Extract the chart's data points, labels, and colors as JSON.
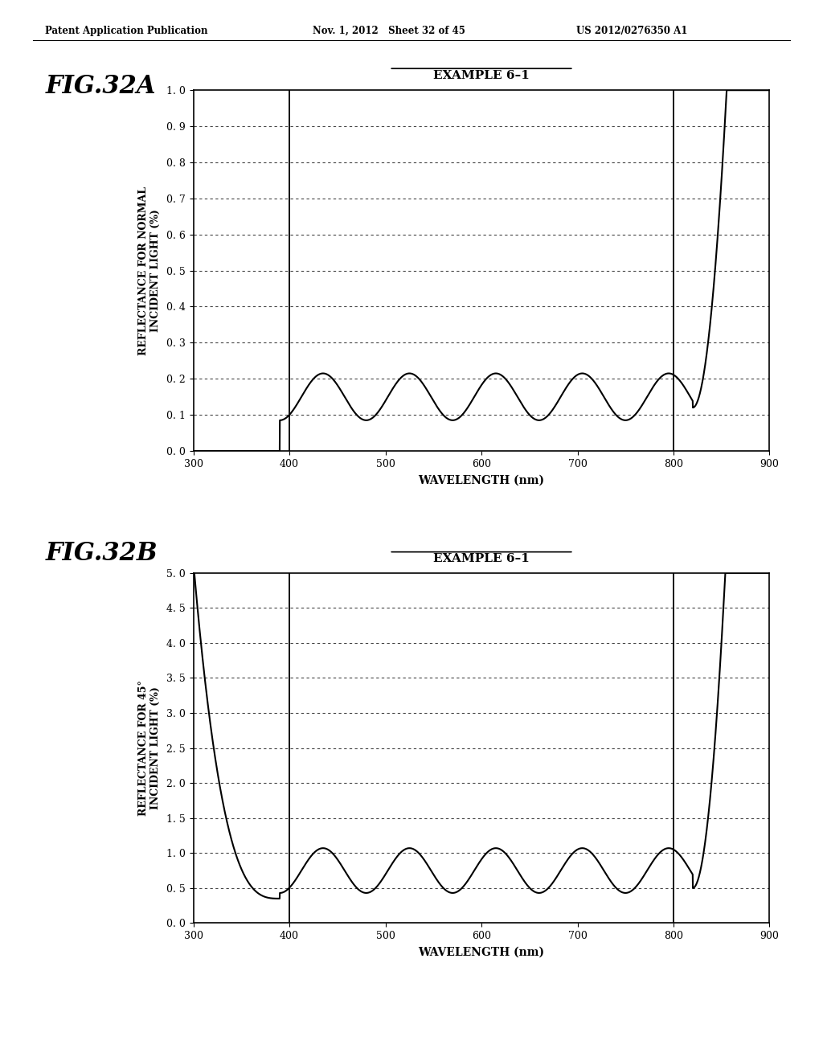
{
  "header_left": "Patent Application Publication",
  "header_mid": "Nov. 1, 2012   Sheet 32 of 45",
  "header_right": "US 2012/0276350 A1",
  "fig_label_A": "FIG.32A",
  "fig_label_B": "FIG.32B",
  "chart_title": "EXAMPLE 6–1",
  "xlabel": "WAVELENGTH (nm)",
  "ylabel_A": "REFLECTANCE FOR NORMAL\nINCIDENT LIGHT (%)",
  "ylabel_B": "REFLECTANCE FOR 45°\nINCIDENT LIGHT (%)",
  "xlim": [
    300,
    900
  ],
  "xticks": [
    300,
    400,
    500,
    600,
    700,
    800,
    900
  ],
  "ylim_A": [
    0.0,
    1.0
  ],
  "yticks_A": [
    0.0,
    0.1,
    0.2,
    0.3,
    0.4,
    0.5,
    0.6,
    0.7,
    0.8,
    0.9,
    1.0
  ],
  "ylim_B": [
    0.0,
    5.0
  ],
  "yticks_B": [
    0.0,
    0.5,
    1.0,
    1.5,
    2.0,
    2.5,
    3.0,
    3.5,
    4.0,
    4.5,
    5.0
  ],
  "bg_color": "#ffffff",
  "line_color": "#000000",
  "grid_color": "#555555",
  "vline_x1": 400,
  "vline_x2": 800
}
